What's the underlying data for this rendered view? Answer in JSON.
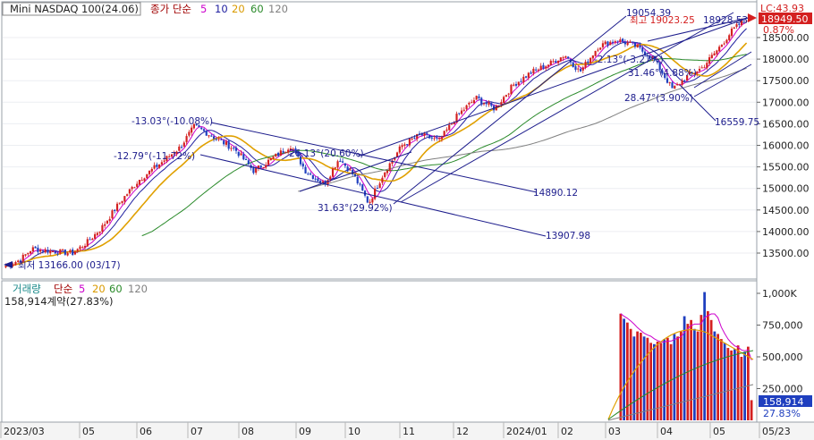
{
  "price_panel": {
    "instrument": "Mini NASDAQ 100(24.06)",
    "legend_prefix": "종가 단순",
    "ma_periods": [
      "5",
      "10",
      "20",
      "60",
      "120"
    ],
    "lc_label": "LC:43.93",
    "current_price_label": "18949.50",
    "change_pct_label": "0.87%",
    "y_ticks": [
      "18500.00",
      "18000.00",
      "17500.00",
      "17000.00",
      "16500.00",
      "16000.00",
      "15500.00",
      "15000.00",
      "14500.00",
      "14000.00",
      "13500.00"
    ],
    "annotations": [
      "19054.39",
      "최고 19023.25",
      "18928.53",
      "-2.13°(-3.27%)",
      "31.46°(4.88%)",
      "28.47°(3.90%)",
      "16559.75",
      "-13.03°(-10.08%)",
      "-12.79°(-11.72%)",
      "26.13°(20.60%)",
      "14890.12",
      "31.63°(29.92%)",
      "13907.98",
      "최저 13166.00 (03/17)"
    ]
  },
  "volume_panel": {
    "title": "거래량",
    "legend_prefix": "단순",
    "ma_periods": [
      "5",
      "20",
      "60",
      "120"
    ],
    "volume_readout": "158,914계약(27.83%)",
    "y_ticks": [
      "1,000K",
      "750,000",
      "500,000",
      "250,000"
    ],
    "current_volume_label": "158,914",
    "current_pct_label": "27.83%"
  },
  "x_axis": {
    "labels": [
      "2023/03",
      "05",
      "06",
      "07",
      "08",
      "09",
      "10",
      "11",
      "12",
      "2024/01",
      "02",
      "03",
      "04",
      "05",
      "05/23"
    ]
  },
  "colors": {
    "up": "#d42020",
    "down": "#1f3fbf",
    "ma5": "#cc00cc",
    "ma10": "#2020a0",
    "ma20": "#e0a000",
    "ma60": "#2a8a2a",
    "ma120": "#808080",
    "channel": "#1c1c8c"
  },
  "chart_data": [
    {
      "type": "candlestick",
      "title": "Mini NASDAQ 100(24.06)",
      "x_range": [
        "2023/03",
        "2024/05/23"
      ],
      "ylim": [
        13100,
        19100
      ],
      "series": [
        {
          "name": "종가 단순 5"
        },
        {
          "name": "10"
        },
        {
          "name": "20"
        },
        {
          "name": "60"
        },
        {
          "name": "120"
        }
      ],
      "key_levels": {
        "high": 19023.25,
        "low": 13166.0,
        "last": 18949.5
      },
      "close_path": [
        {
          "t": 0.0,
          "v": 13200
        },
        {
          "t": 0.02,
          "v": 13350
        },
        {
          "t": 0.035,
          "v": 13600
        },
        {
          "t": 0.06,
          "v": 13550
        },
        {
          "t": 0.09,
          "v": 13500
        },
        {
          "t": 0.11,
          "v": 13750
        },
        {
          "t": 0.13,
          "v": 14100
        },
        {
          "t": 0.155,
          "v": 14700
        },
        {
          "t": 0.18,
          "v": 15200
        },
        {
          "t": 0.21,
          "v": 15600
        },
        {
          "t": 0.235,
          "v": 15950
        },
        {
          "t": 0.255,
          "v": 16450
        },
        {
          "t": 0.285,
          "v": 16150
        },
        {
          "t": 0.31,
          "v": 15900
        },
        {
          "t": 0.335,
          "v": 15400
        },
        {
          "t": 0.36,
          "v": 15700
        },
        {
          "t": 0.385,
          "v": 16000
        },
        {
          "t": 0.405,
          "v": 15400
        },
        {
          "t": 0.43,
          "v": 15100
        },
        {
          "t": 0.45,
          "v": 15700
        },
        {
          "t": 0.47,
          "v": 15300
        },
        {
          "t": 0.49,
          "v": 14650
        },
        {
          "t": 0.51,
          "v": 15350
        },
        {
          "t": 0.535,
          "v": 16000
        },
        {
          "t": 0.56,
          "v": 16250
        },
        {
          "t": 0.585,
          "v": 16100
        },
        {
          "t": 0.61,
          "v": 16700
        },
        {
          "t": 0.635,
          "v": 17100
        },
        {
          "t": 0.66,
          "v": 16850
        },
        {
          "t": 0.685,
          "v": 17400
        },
        {
          "t": 0.71,
          "v": 17700
        },
        {
          "t": 0.735,
          "v": 17900
        },
        {
          "t": 0.755,
          "v": 18100
        },
        {
          "t": 0.775,
          "v": 17700
        },
        {
          "t": 0.8,
          "v": 18300
        },
        {
          "t": 0.825,
          "v": 18450
        },
        {
          "t": 0.85,
          "v": 18300
        },
        {
          "t": 0.875,
          "v": 18000
        },
        {
          "t": 0.9,
          "v": 17300
        },
        {
          "t": 0.92,
          "v": 17600
        },
        {
          "t": 0.94,
          "v": 17800
        },
        {
          "t": 0.96,
          "v": 18200
        },
        {
          "t": 0.98,
          "v": 18650
        },
        {
          "t": 1.0,
          "v": 18950
        }
      ]
    },
    {
      "type": "bar",
      "title": "거래량",
      "ylim": [
        0,
        1050000
      ],
      "series": [
        {
          "name": "거래량"
        }
      ],
      "visible_from": "2024/03",
      "values": [
        840000,
        800000,
        770000,
        720000,
        660000,
        700000,
        690000,
        660000,
        650000,
        610000,
        600000,
        620000,
        610000,
        640000,
        650000,
        600000,
        680000,
        660000,
        700000,
        820000,
        760000,
        790000,
        720000,
        700000,
        830000,
        1010000,
        860000,
        790000,
        700000,
        680000,
        640000,
        610000,
        570000,
        550000,
        560000,
        590000,
        500000,
        540000,
        580000,
        158914
      ]
    }
  ]
}
